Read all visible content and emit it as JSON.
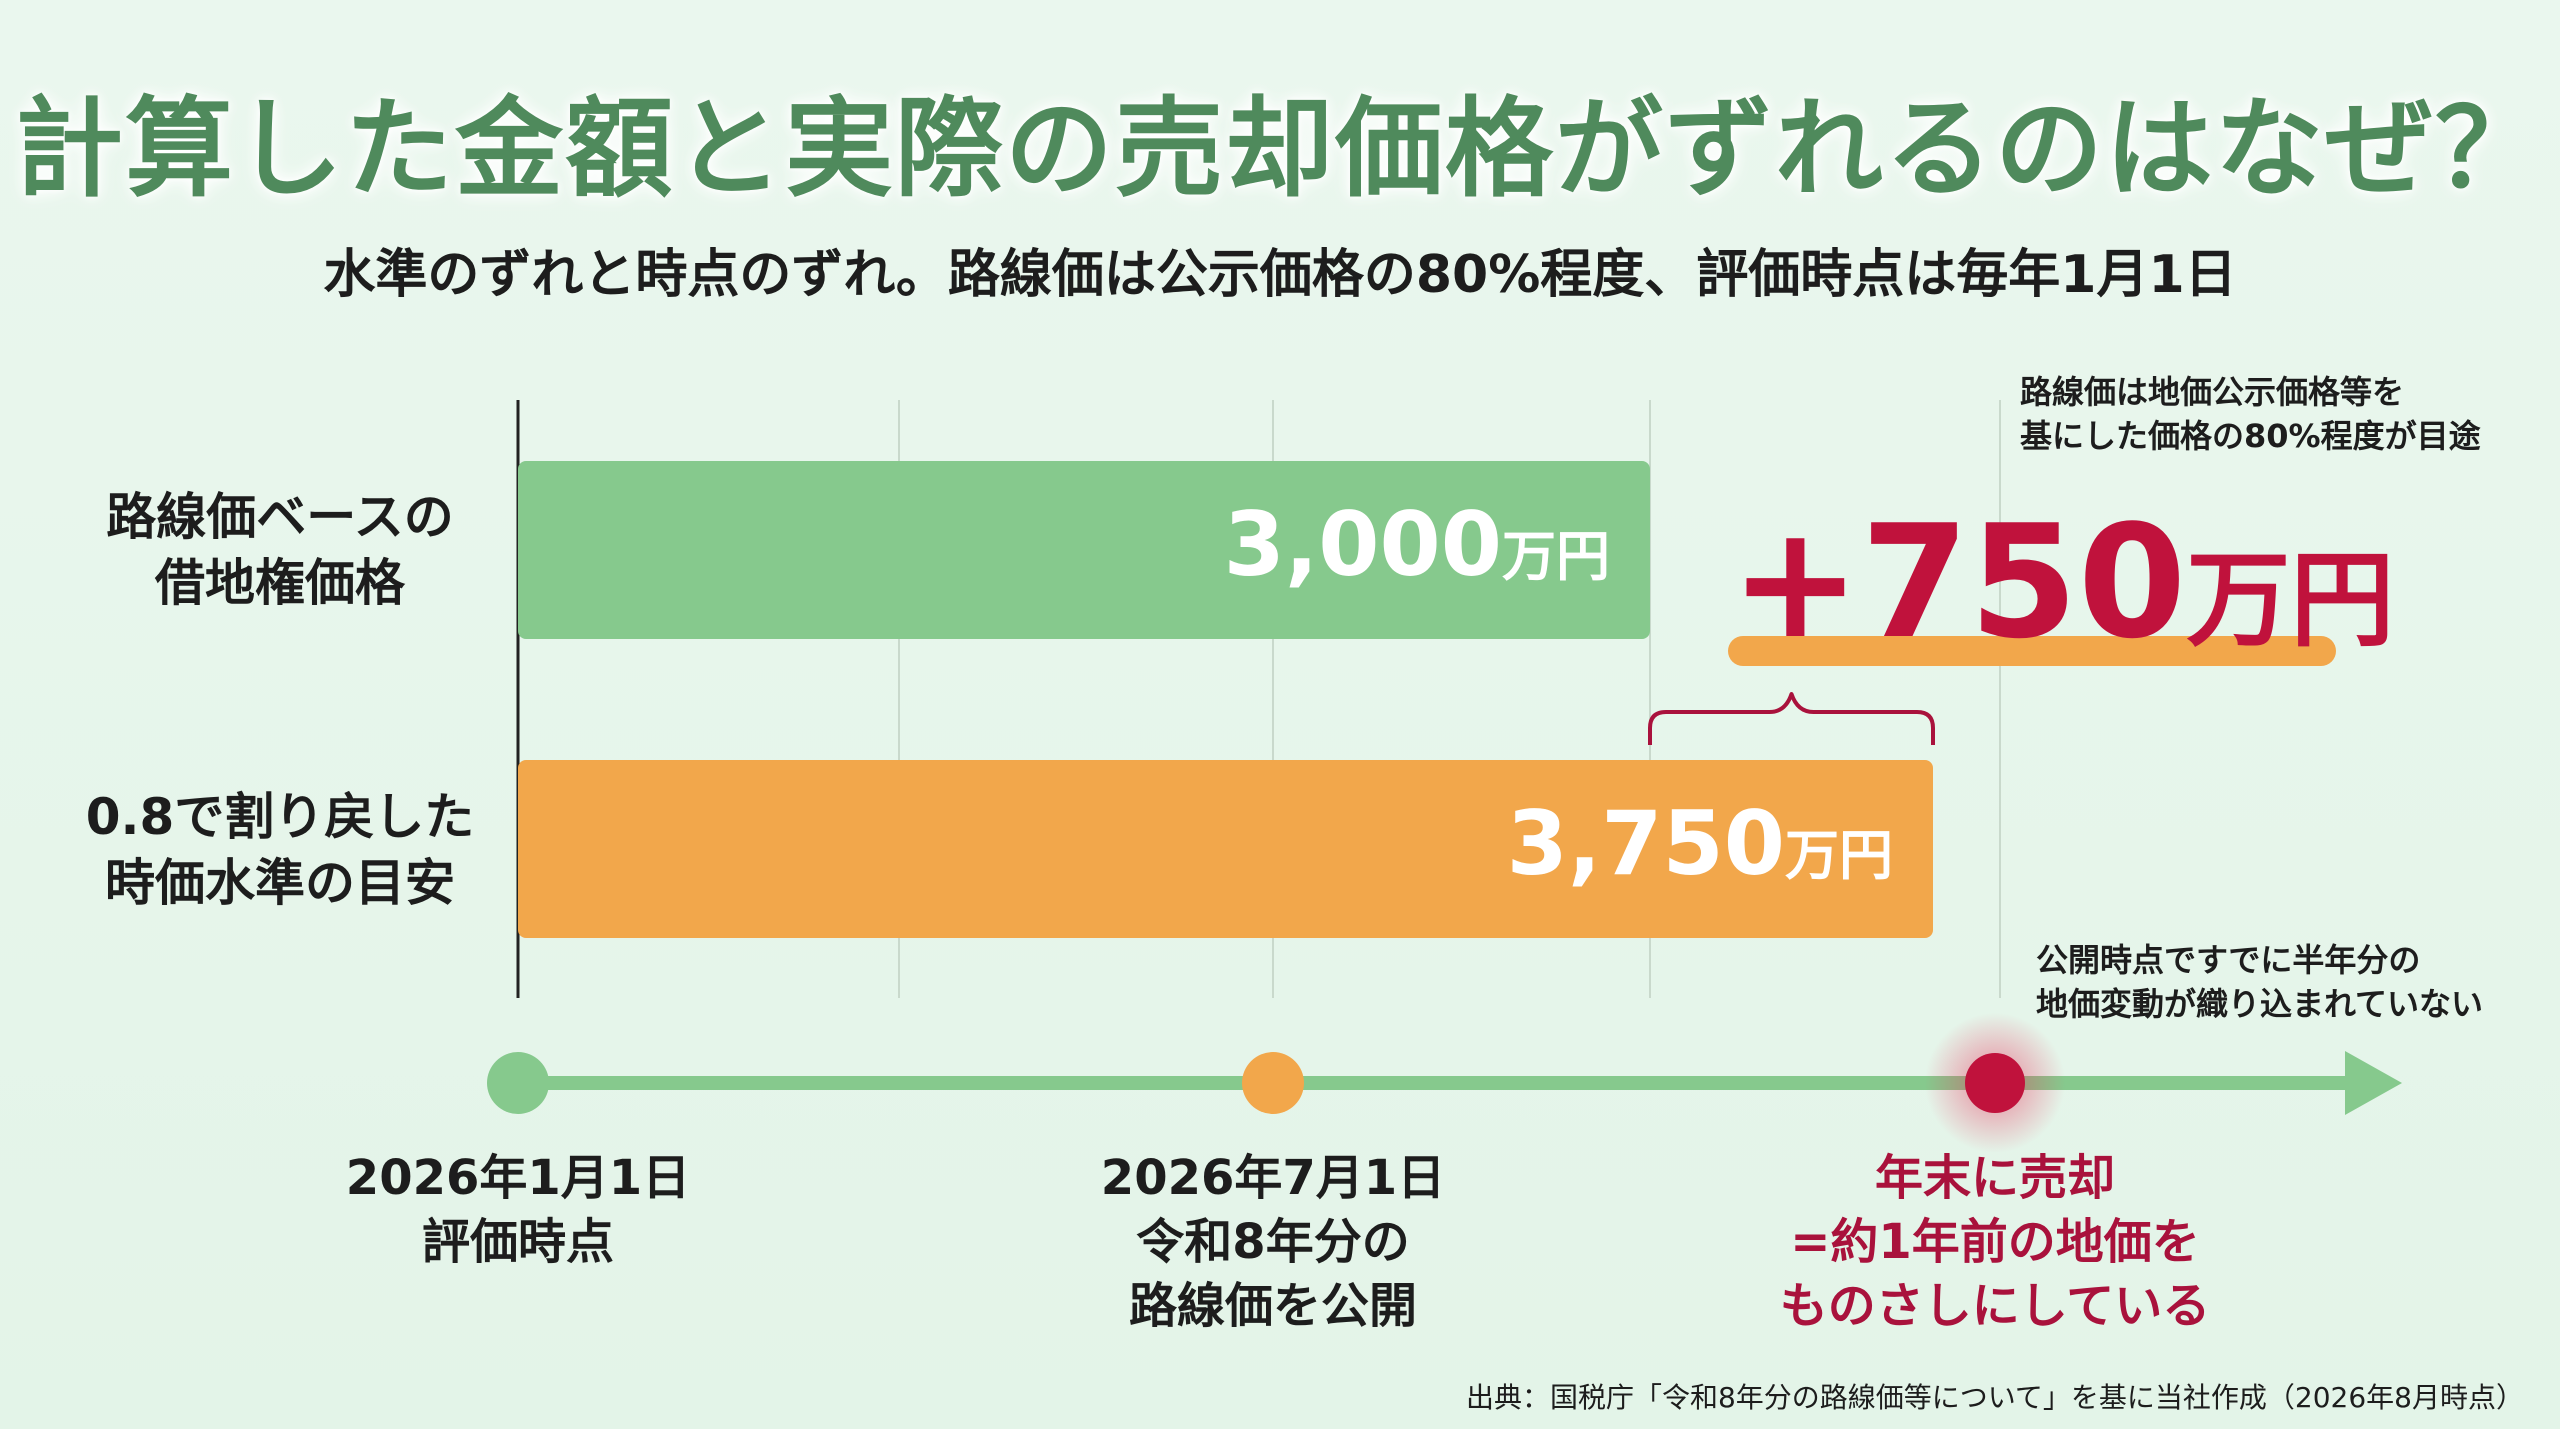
{
  "title": "計算した金額と実際の売却価格がずれるのはなぜ？",
  "subtitle": "水準のずれと時点のずれ。路線価は公示価格の80%程度、評価時点は毎年1月1日",
  "note_top": [
    "路線価は地価公示価格等を",
    "基にした価格の80%程度が目途"
  ],
  "note_mid": [
    "公開時点ですでに半年分の",
    "地価変動が織り込まれていない"
  ],
  "difference_label": {
    "number": "+750",
    "unit": "万円"
  },
  "timeline": [
    {
      "lines": [
        "2026年1月1日",
        "評価時点"
      ],
      "color": "#86c98d"
    },
    {
      "lines": [
        "2026年7月1日",
        "令和8年分の",
        "路線価を公開"
      ],
      "color": "#f2a74b"
    },
    {
      "lines": [
        "年末に売却",
        "=約1年前の地価を",
        "ものさしにしている"
      ],
      "color": "#c0123c"
    }
  ],
  "source": "出典：国税庁「令和8年分の路線価等について」を基に当社作成（2026年8月時点）",
  "colors": {
    "green": "#86c98d",
    "orange": "#f2a74b",
    "accent": "#c0123c",
    "title": "#4f8a5c"
  },
  "chart_data": {
    "type": "bar",
    "orientation": "horizontal",
    "categories": [
      [
        "路線価ベースの",
        "借地権価格"
      ],
      [
        "0.8で割り戻した",
        "時価水準の目安"
      ]
    ],
    "values": [
      3000,
      3750
    ],
    "value_labels": [
      {
        "number": "3,000",
        "unit": "万円"
      },
      {
        "number": "3,750",
        "unit": "万円"
      }
    ],
    "unit": "万円",
    "bar_colors": [
      "#86c98d",
      "#f2a74b"
    ],
    "difference": 750,
    "grid": true
  }
}
